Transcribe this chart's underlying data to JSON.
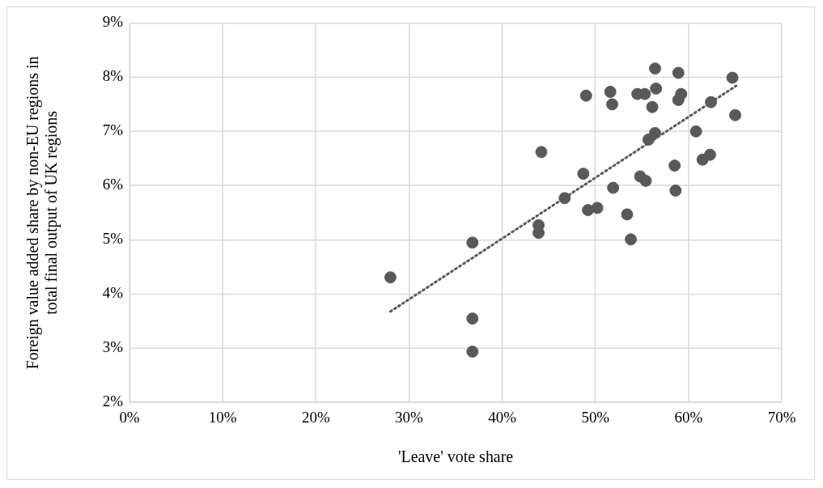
{
  "chart_data": {
    "type": "scatter",
    "xlabel": "'Leave' vote share",
    "ylabel": "Foreign value added share by non-EU regions in total final output of UK regions",
    "xlim": [
      0,
      70
    ],
    "ylim": [
      2,
      9
    ],
    "xticks": [
      {
        "value": 0,
        "label": "0%"
      },
      {
        "value": 10,
        "label": "10%"
      },
      {
        "value": 20,
        "label": "20%"
      },
      {
        "value": 30,
        "label": "30%"
      },
      {
        "value": 40,
        "label": "40%"
      },
      {
        "value": 50,
        "label": "50%"
      },
      {
        "value": 60,
        "label": "60%"
      },
      {
        "value": 70,
        "label": "70%"
      }
    ],
    "yticks": [
      {
        "value": 2,
        "label": "2%"
      },
      {
        "value": 3,
        "label": "3%"
      },
      {
        "value": 4,
        "label": "4%"
      },
      {
        "value": 5,
        "label": "5%"
      },
      {
        "value": 6,
        "label": "6%"
      },
      {
        "value": 7,
        "label": "7%"
      },
      {
        "value": 8,
        "label": "8%"
      },
      {
        "value": 9,
        "label": "9%"
      }
    ],
    "grid": true,
    "marker": "circle",
    "series": [
      {
        "color": "#595959",
        "x": [
          28.0,
          36.8,
          36.8,
          36.8,
          44.2,
          43.9,
          43.9,
          46.7,
          48.7,
          49.0,
          49.2,
          50.2,
          51.6,
          51.8,
          51.9,
          53.4,
          53.8,
          54.5,
          54.8,
          55.3,
          55.4,
          55.7,
          56.1,
          56.4,
          56.4,
          56.5,
          58.5,
          58.6,
          58.9,
          58.9,
          59.2,
          60.8,
          61.5,
          62.3,
          62.4,
          64.7,
          65.0
        ],
        "values": [
          4.31,
          4.95,
          3.55,
          2.94,
          6.62,
          5.27,
          5.13,
          5.77,
          6.22,
          7.66,
          5.55,
          5.59,
          7.73,
          7.5,
          5.96,
          5.47,
          5.01,
          7.69,
          6.17,
          7.69,
          6.09,
          6.85,
          7.45,
          8.16,
          6.97,
          7.79,
          6.37,
          5.91,
          8.08,
          7.58,
          7.69,
          7.0,
          6.48,
          6.57,
          7.54,
          7.99,
          7.3
        ]
      },
      {
        "type": "line",
        "color": "#595959",
        "line_style": "dotted",
        "marker": "none",
        "x": [
          28.0,
          65.1
        ],
        "values": [
          3.68,
          7.84
        ]
      }
    ]
  }
}
